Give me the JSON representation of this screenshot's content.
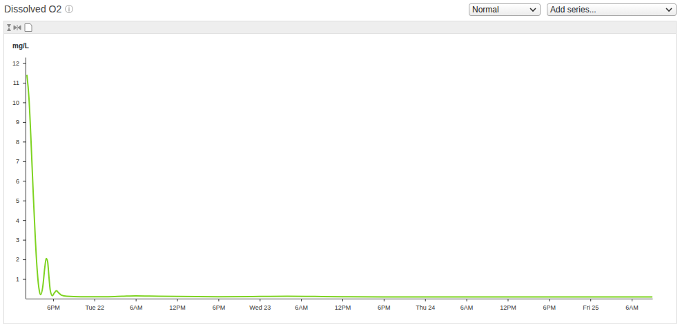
{
  "controls": {
    "scale_select": "Normal",
    "series_select": "Add series..."
  },
  "chart_data": {
    "type": "line",
    "title": "Dissolved O2",
    "ylabel": "mg/L",
    "color": "#7ed321",
    "x": [
      14.2,
      14.5,
      14.8,
      15.1,
      15.4,
      15.7,
      16.0,
      16.2,
      16.5,
      16.8,
      17.0,
      17.2,
      17.4,
      17.6,
      17.9,
      18.2,
      18.5,
      18.8,
      19.2,
      20,
      22,
      26,
      28,
      30,
      32,
      36,
      42,
      48,
      52,
      56,
      60,
      66,
      72,
      78,
      84,
      90,
      96,
      102,
      105
    ],
    "values": [
      11.4,
      10.2,
      8.0,
      5.5,
      3.2,
      1.4,
      0.4,
      0.2,
      0.6,
      1.6,
      2.05,
      1.9,
      1.1,
      0.4,
      0.15,
      0.3,
      0.4,
      0.3,
      0.18,
      0.12,
      0.1,
      0.1,
      0.12,
      0.14,
      0.13,
      0.11,
      0.1,
      0.11,
      0.12,
      0.11,
      0.1,
      0.09,
      0.09,
      0.09,
      0.09,
      0.09,
      0.09,
      0.09,
      0.09
    ],
    "xlim": [
      14,
      105
    ],
    "xticks": [
      {
        "value": 18,
        "label": "6PM"
      },
      {
        "value": 24,
        "label": "Tue 22"
      },
      {
        "value": 30,
        "label": "6AM"
      },
      {
        "value": 36,
        "label": "12PM"
      },
      {
        "value": 42,
        "label": "6PM"
      },
      {
        "value": 48,
        "label": "Wed 23"
      },
      {
        "value": 54,
        "label": "6AM"
      },
      {
        "value": 60,
        "label": "12PM"
      },
      {
        "value": 66,
        "label": "6PM"
      },
      {
        "value": 72,
        "label": "Thu 24"
      },
      {
        "value": 78,
        "label": "6AM"
      },
      {
        "value": 84,
        "label": "12PM"
      },
      {
        "value": 90,
        "label": "6PM"
      },
      {
        "value": 96,
        "label": "Fri 25"
      },
      {
        "value": 102,
        "label": "6AM"
      }
    ],
    "ylim": [
      0,
      12.3
    ],
    "yticks": [
      1,
      2,
      3,
      4,
      5,
      6,
      7,
      8,
      9,
      10,
      11,
      12
    ],
    "grid": false
  }
}
